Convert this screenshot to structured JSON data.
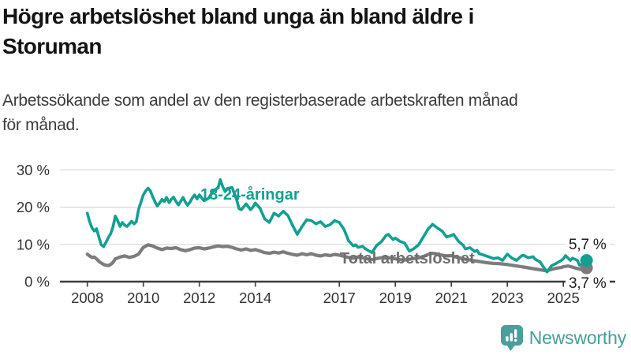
{
  "title_lines": [
    "Högre arbetslöshet bland unga än bland äldre i",
    "Storuman"
  ],
  "subtitle_lines": [
    "Arbetssökande som andel av den registerbaserade arbetskraften månad",
    "för månad."
  ],
  "branding": {
    "name": "Newsworthy",
    "color": "#47A09A"
  },
  "colors": {
    "accent_teal": "#12A092",
    "gray_series": "#7C7C7C",
    "grid": "#D8D8D8",
    "axis": "#3D3D3D",
    "axis_text": "#333333",
    "title_text": "#141414"
  },
  "chart_data": {
    "type": "line",
    "title": "Högre arbetslöshet bland unga än bland äldre i Storuman",
    "subtitle": "Arbetssökande som andel av den registerbaserade arbetskraften månad för månad.",
    "unit": "%",
    "grid": true,
    "ylim": [
      0,
      30
    ],
    "y_axis": {
      "ticks": [
        {
          "v": 0,
          "label": "0 %"
        },
        {
          "v": 10,
          "label": "10 %"
        },
        {
          "v": 20,
          "label": "20 %"
        },
        {
          "v": 30,
          "label": "30 %"
        }
      ]
    },
    "x_axis": {
      "ticks": [
        {
          "v": 2008,
          "label": "2008"
        },
        {
          "v": 2010,
          "label": "2010"
        },
        {
          "v": 2012,
          "label": "2012"
        },
        {
          "v": 2014,
          "label": "2014"
        },
        {
          "v": 2017,
          "label": "2017"
        },
        {
          "v": 2019,
          "label": "2019"
        },
        {
          "v": 2021,
          "label": "2021"
        },
        {
          "v": 2023,
          "label": "2023"
        },
        {
          "v": 2025,
          "label": "2025"
        }
      ]
    },
    "x_range_years": [
      2008,
      2025.83
    ],
    "series": [
      {
        "name": "18-24-åringar",
        "color": "#12A092",
        "end_label": "5,7 %",
        "end_value": 5.7,
        "points": [
          [
            2008.0,
            18.4
          ],
          [
            2008.08,
            16.2
          ],
          [
            2008.17,
            14.4
          ],
          [
            2008.25,
            13.6
          ],
          [
            2008.33,
            14.2
          ],
          [
            2008.42,
            11.8
          ],
          [
            2008.5,
            9.9
          ],
          [
            2008.58,
            9.4
          ],
          [
            2008.67,
            10.6
          ],
          [
            2008.75,
            11.8
          ],
          [
            2008.83,
            12.8
          ],
          [
            2008.92,
            14.8
          ],
          [
            2009.0,
            17.6
          ],
          [
            2009.08,
            16.4
          ],
          [
            2009.17,
            14.8
          ],
          [
            2009.25,
            15.9
          ],
          [
            2009.33,
            15.2
          ],
          [
            2009.42,
            14.8
          ],
          [
            2009.5,
            15.5
          ],
          [
            2009.58,
            16.2
          ],
          [
            2009.67,
            15.5
          ],
          [
            2009.75,
            16.1
          ],
          [
            2009.83,
            19.4
          ],
          [
            2009.92,
            21.5
          ],
          [
            2010.0,
            23.3
          ],
          [
            2010.08,
            24.3
          ],
          [
            2010.17,
            25.1
          ],
          [
            2010.25,
            24.4
          ],
          [
            2010.33,
            22.9
          ],
          [
            2010.42,
            21.4
          ],
          [
            2010.5,
            20.3
          ],
          [
            2010.58,
            21.1
          ],
          [
            2010.67,
            22.1
          ],
          [
            2010.75,
            21.5
          ],
          [
            2010.83,
            22.6
          ],
          [
            2010.92,
            21.2
          ],
          [
            2011.0,
            22.1
          ],
          [
            2011.08,
            22.7
          ],
          [
            2011.17,
            21.5
          ],
          [
            2011.25,
            20.6
          ],
          [
            2011.33,
            21.5
          ],
          [
            2011.42,
            22.6
          ],
          [
            2011.5,
            21.4
          ],
          [
            2011.58,
            20.5
          ],
          [
            2011.67,
            21.4
          ],
          [
            2011.75,
            22.5
          ],
          [
            2011.83,
            23.3
          ],
          [
            2011.92,
            22.2
          ],
          [
            2012.0,
            23.3
          ],
          [
            2012.17,
            21.7
          ],
          [
            2012.33,
            22.4
          ],
          [
            2012.5,
            24.4
          ],
          [
            2012.67,
            25.2
          ],
          [
            2012.75,
            27.4
          ],
          [
            2012.83,
            25.6
          ],
          [
            2012.92,
            24.2
          ],
          [
            2013.0,
            25.0
          ],
          [
            2013.17,
            25.3
          ],
          [
            2013.33,
            22.1
          ],
          [
            2013.42,
            19.6
          ],
          [
            2013.5,
            19.3
          ],
          [
            2013.67,
            20.9
          ],
          [
            2013.83,
            19.3
          ],
          [
            2013.92,
            20.1
          ],
          [
            2014.0,
            21.1
          ],
          [
            2014.17,
            19.7
          ],
          [
            2014.33,
            16.9
          ],
          [
            2014.5,
            15.9
          ],
          [
            2014.67,
            18.4
          ],
          [
            2014.83,
            17.6
          ],
          [
            2015.0,
            18.9
          ],
          [
            2015.17,
            17.7
          ],
          [
            2015.33,
            15.1
          ],
          [
            2015.5,
            12.7
          ],
          [
            2015.67,
            14.8
          ],
          [
            2015.83,
            16.6
          ],
          [
            2016.0,
            16.4
          ],
          [
            2016.17,
            15.5
          ],
          [
            2016.33,
            16.1
          ],
          [
            2016.5,
            14.8
          ],
          [
            2016.67,
            15.3
          ],
          [
            2016.83,
            16.4
          ],
          [
            2017.0,
            15.9
          ],
          [
            2017.17,
            14.0
          ],
          [
            2017.33,
            11.0
          ],
          [
            2017.5,
            9.6
          ],
          [
            2017.58,
            9.9
          ],
          [
            2017.67,
            9.2
          ],
          [
            2017.83,
            9.5
          ],
          [
            2017.92,
            8.9
          ],
          [
            2018.0,
            8.5
          ],
          [
            2018.17,
            7.8
          ],
          [
            2018.33,
            9.7
          ],
          [
            2018.5,
            10.7
          ],
          [
            2018.67,
            12.4
          ],
          [
            2018.75,
            12.7
          ],
          [
            2018.92,
            11.3
          ],
          [
            2019.0,
            11.7
          ],
          [
            2019.17,
            10.8
          ],
          [
            2019.33,
            10.4
          ],
          [
            2019.5,
            8.2
          ],
          [
            2019.67,
            8.9
          ],
          [
            2019.83,
            9.9
          ],
          [
            2020.0,
            12.0
          ],
          [
            2020.17,
            14.1
          ],
          [
            2020.33,
            15.4
          ],
          [
            2020.5,
            14.4
          ],
          [
            2020.67,
            13.6
          ],
          [
            2020.83,
            12.0
          ],
          [
            2021.0,
            12.4
          ],
          [
            2021.08,
            12.7
          ],
          [
            2021.25,
            10.9
          ],
          [
            2021.42,
            9.8
          ],
          [
            2021.5,
            8.8
          ],
          [
            2021.67,
            9.1
          ],
          [
            2021.83,
            8.1
          ],
          [
            2021.92,
            8.4
          ],
          [
            2022.0,
            7.5
          ],
          [
            2022.17,
            7.1
          ],
          [
            2022.33,
            6.7
          ],
          [
            2022.5,
            6.2
          ],
          [
            2022.67,
            6.4
          ],
          [
            2022.83,
            5.7
          ],
          [
            2023.0,
            7.4
          ],
          [
            2023.17,
            6.3
          ],
          [
            2023.33,
            5.7
          ],
          [
            2023.5,
            6.9
          ],
          [
            2023.58,
            7.1
          ],
          [
            2023.75,
            6.4
          ],
          [
            2023.92,
            6.7
          ],
          [
            2024.0,
            6.0
          ],
          [
            2024.17,
            5.3
          ],
          [
            2024.33,
            3.5
          ],
          [
            2024.42,
            2.6
          ],
          [
            2024.58,
            4.3
          ],
          [
            2024.75,
            4.9
          ],
          [
            2024.92,
            5.7
          ],
          [
            2025.0,
            6.1
          ],
          [
            2025.08,
            7.0
          ],
          [
            2025.25,
            5.7
          ],
          [
            2025.33,
            6.3
          ],
          [
            2025.5,
            5.7
          ],
          [
            2025.58,
            4.4
          ],
          [
            2025.75,
            4.8
          ],
          [
            2025.83,
            5.7
          ]
        ]
      },
      {
        "name": "Total arbetslöshet",
        "color": "#7C7C7C",
        "end_label": "3,7 %",
        "end_value": 3.7,
        "points": [
          [
            2008.0,
            7.4
          ],
          [
            2008.08,
            6.9
          ],
          [
            2008.17,
            6.5
          ],
          [
            2008.25,
            6.6
          ],
          [
            2008.33,
            6.1
          ],
          [
            2008.42,
            5.4
          ],
          [
            2008.5,
            5.0
          ],
          [
            2008.58,
            4.6
          ],
          [
            2008.67,
            4.4
          ],
          [
            2008.75,
            4.3
          ],
          [
            2008.83,
            4.6
          ],
          [
            2008.92,
            5.2
          ],
          [
            2009.0,
            6.1
          ],
          [
            2009.17,
            6.6
          ],
          [
            2009.33,
            6.9
          ],
          [
            2009.5,
            6.5
          ],
          [
            2009.67,
            6.8
          ],
          [
            2009.83,
            7.4
          ],
          [
            2009.92,
            8.4
          ],
          [
            2010.0,
            9.2
          ],
          [
            2010.17,
            9.9
          ],
          [
            2010.33,
            9.6
          ],
          [
            2010.5,
            9.0
          ],
          [
            2010.67,
            8.6
          ],
          [
            2010.83,
            9.0
          ],
          [
            2011.0,
            8.9
          ],
          [
            2011.17,
            9.1
          ],
          [
            2011.33,
            8.6
          ],
          [
            2011.5,
            8.3
          ],
          [
            2011.67,
            8.6
          ],
          [
            2011.83,
            9.0
          ],
          [
            2012.0,
            9.1
          ],
          [
            2012.17,
            8.8
          ],
          [
            2012.33,
            9.0
          ],
          [
            2012.5,
            9.3
          ],
          [
            2012.67,
            9.6
          ],
          [
            2012.83,
            9.4
          ],
          [
            2013.0,
            9.5
          ],
          [
            2013.17,
            9.2
          ],
          [
            2013.33,
            8.8
          ],
          [
            2013.5,
            8.5
          ],
          [
            2013.67,
            8.8
          ],
          [
            2013.83,
            8.4
          ],
          [
            2014.0,
            8.6
          ],
          [
            2014.17,
            8.2
          ],
          [
            2014.33,
            7.8
          ],
          [
            2014.5,
            7.6
          ],
          [
            2014.67,
            7.9
          ],
          [
            2014.83,
            7.7
          ],
          [
            2015.0,
            8.0
          ],
          [
            2015.17,
            7.6
          ],
          [
            2015.33,
            7.3
          ],
          [
            2015.5,
            7.1
          ],
          [
            2015.67,
            7.5
          ],
          [
            2015.83,
            7.2
          ],
          [
            2016.0,
            7.5
          ],
          [
            2016.17,
            7.1
          ],
          [
            2016.33,
            6.9
          ],
          [
            2016.5,
            7.2
          ],
          [
            2016.67,
            7.0
          ],
          [
            2016.83,
            7.3
          ],
          [
            2017.0,
            7.1
          ],
          [
            2017.17,
            6.8
          ],
          [
            2017.33,
            6.5
          ],
          [
            2017.5,
            6.3
          ],
          [
            2017.67,
            6.6
          ],
          [
            2017.83,
            6.4
          ],
          [
            2018.0,
            6.1
          ],
          [
            2018.17,
            5.9
          ],
          [
            2018.33,
            6.2
          ],
          [
            2018.5,
            6.4
          ],
          [
            2018.67,
            6.6
          ],
          [
            2018.83,
            6.3
          ],
          [
            2019.0,
            6.1
          ],
          [
            2019.17,
            5.9
          ],
          [
            2019.33,
            5.8
          ],
          [
            2019.5,
            6.0
          ],
          [
            2019.67,
            6.2
          ],
          [
            2019.83,
            6.4
          ],
          [
            2020.0,
            6.7
          ],
          [
            2020.17,
            7.3
          ],
          [
            2020.33,
            7.6
          ],
          [
            2020.5,
            7.4
          ],
          [
            2020.67,
            7.1
          ],
          [
            2020.83,
            6.9
          ],
          [
            2021.0,
            7.0
          ],
          [
            2021.17,
            6.6
          ],
          [
            2021.33,
            6.3
          ],
          [
            2021.5,
            6.0
          ],
          [
            2021.67,
            5.8
          ],
          [
            2021.83,
            5.6
          ],
          [
            2022.0,
            5.4
          ],
          [
            2022.25,
            5.1
          ],
          [
            2022.5,
            4.9
          ],
          [
            2022.75,
            4.8
          ],
          [
            2023.0,
            4.6
          ],
          [
            2023.25,
            4.3
          ],
          [
            2023.5,
            4.0
          ],
          [
            2023.75,
            3.7
          ],
          [
            2024.0,
            3.4
          ],
          [
            2024.25,
            3.1
          ],
          [
            2024.42,
            2.9
          ],
          [
            2024.58,
            3.3
          ],
          [
            2024.75,
            3.6
          ],
          [
            2024.92,
            3.8
          ],
          [
            2025.0,
            4.0
          ],
          [
            2025.17,
            4.2
          ],
          [
            2025.33,
            3.9
          ],
          [
            2025.5,
            3.5
          ],
          [
            2025.67,
            3.3
          ],
          [
            2025.83,
            3.7
          ]
        ]
      }
    ]
  }
}
